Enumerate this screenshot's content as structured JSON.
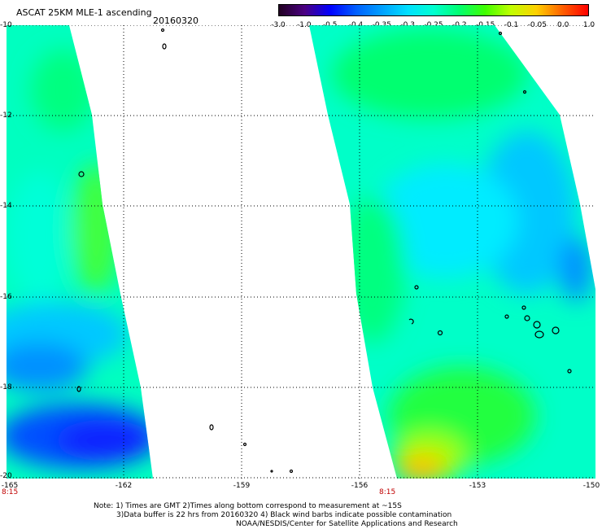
{
  "header": {
    "title": "ASCAT 25KM MLE-1 ascending",
    "date": "20160320"
  },
  "colorbar": {
    "ticks": [
      "-3.0",
      "-1.0",
      "-0.5",
      "-0.4",
      "-0.35",
      "-0.3",
      "-0.25",
      "-0.2",
      "-0.15",
      "-0.1",
      "-0.05",
      "0.0",
      "1.0"
    ],
    "colors": [
      "#200020",
      "#4b0082",
      "#0000ff",
      "#0060ff",
      "#00a0ff",
      "#00e0ff",
      "#00ffd0",
      "#00ff70",
      "#40ff00",
      "#c0ff00",
      "#ffd000",
      "#ff6000",
      "#ff0000"
    ]
  },
  "map": {
    "lat_labels": [
      "-10",
      "-12",
      "-14",
      "-16",
      "-18",
      "-20"
    ],
    "lon_labels": [
      "-165",
      "-162",
      "-159",
      "-156",
      "-153",
      "-150"
    ],
    "lat_range": [
      -10,
      -20
    ],
    "lon_range": [
      -165,
      -150
    ],
    "times": [
      "8:15",
      "8:15"
    ]
  },
  "notes": {
    "line1": "Note: 1) Times are GMT 2)Times along bottom correspond to measurement at ~15S",
    "line2": "3)Data buffer is 22 hrs from 20160320 4) Black wind barbs indicate possible contamination",
    "line3": "NOAA/NESDIS/Center for Satellite Applications and Research"
  }
}
